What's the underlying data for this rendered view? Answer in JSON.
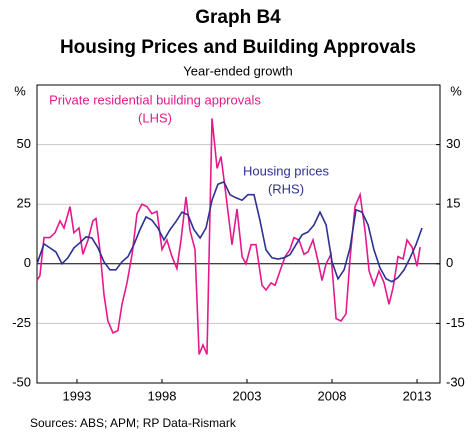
{
  "chart_data": {
    "type": "line",
    "title": "Graph B4",
    "subtitle": "Housing Prices and Building Approvals",
    "description": "Year-ended growth",
    "y_unit": "%",
    "y2_unit": "%",
    "source": "Sources: ABS; APM; RP Data-Rismark",
    "xlim": [
      1990.65,
      2014.35
    ],
    "xticks": [
      1993,
      1998,
      2003,
      2008,
      2013
    ],
    "ylim": [
      -50,
      75
    ],
    "yticks": [
      -50,
      -25,
      0,
      25,
      50
    ],
    "y2lim": [
      -30,
      45
    ],
    "y2ticks": [
      -30,
      -15,
      0,
      15,
      30
    ],
    "grid": true,
    "annotations": [
      {
        "text": "Private residential building approvals",
        "series": 0
      },
      {
        "text": "(LHS)",
        "series": 0
      },
      {
        "text": "Housing prices",
        "series": 1
      },
      {
        "text": "(RHS)",
        "series": 1
      }
    ],
    "series": [
      {
        "name": "Private residential building approvals",
        "color": "#e6198c",
        "axis": "y",
        "x": [
          1990.65,
          1990.82,
          1991.06,
          1991.41,
          1991.71,
          1992.0,
          1992.24,
          1992.59,
          1992.82,
          1993.12,
          1993.35,
          1993.65,
          1993.94,
          1994.12,
          1994.35,
          1994.59,
          1994.82,
          1995.12,
          1995.41,
          1995.65,
          1995.94,
          1996.24,
          1996.53,
          1996.82,
          1997.12,
          1997.41,
          1997.71,
          1998.0,
          1998.29,
          1998.59,
          1998.88,
          1999.12,
          1999.41,
          1999.65,
          1999.94,
          2000.18,
          2000.41,
          2000.65,
          2000.94,
          2001.24,
          2001.47,
          2001.76,
          2002.12,
          2002.41,
          2002.71,
          2002.94,
          2003.24,
          2003.53,
          2003.88,
          2004.12,
          2004.41,
          2004.65,
          2004.94,
          2005.24,
          2005.53,
          2005.76,
          2006.06,
          2006.35,
          2006.59,
          2006.88,
          2007.18,
          2007.41,
          2007.65,
          2007.94,
          2008.24,
          2008.53,
          2008.82,
          2009.06,
          2009.35,
          2009.65,
          2009.94,
          2010.18,
          2010.47,
          2010.76,
          2011.06,
          2011.35,
          2011.59,
          2011.88,
          2012.18,
          2012.41,
          2012.71,
          2013.0,
          2013.18
        ],
        "values": [
          -7,
          -5,
          11,
          11,
          13,
          18,
          15,
          24,
          13,
          15,
          4,
          10,
          18,
          19,
          6,
          -13,
          -24,
          -29,
          -28,
          -17,
          -8,
          4,
          21,
          25,
          24,
          21,
          22,
          6,
          10,
          3,
          -2,
          10,
          28,
          14,
          6,
          -38,
          -34,
          -38,
          61,
          40,
          45,
          29,
          8,
          23,
          3,
          0,
          8,
          8,
          -9,
          -11,
          -8,
          -9,
          -3,
          3,
          6,
          11,
          10,
          4,
          5,
          10,
          1,
          -7,
          0,
          4,
          -23,
          -24,
          -21,
          2,
          24,
          29,
          14,
          -3,
          -9,
          -3,
          -8,
          -17,
          -10,
          3,
          2,
          10,
          7,
          -1,
          7
        ]
      },
      {
        "name": "Housing prices",
        "color": "#2e3192",
        "axis": "y2",
        "x": [
          1990.65,
          1991.06,
          1991.41,
          1991.76,
          1992.12,
          1992.47,
          1992.82,
          1993.18,
          1993.53,
          1993.88,
          1994.24,
          1994.59,
          1994.94,
          1995.29,
          1995.65,
          1996.0,
          1996.35,
          1996.71,
          1997.06,
          1997.41,
          1997.76,
          1998.12,
          1998.47,
          1998.82,
          1999.18,
          1999.53,
          1999.88,
          2000.24,
          2000.59,
          2000.94,
          2001.29,
          2001.65,
          2002.0,
          2002.35,
          2002.71,
          2003.06,
          2003.41,
          2003.76,
          2004.12,
          2004.47,
          2004.82,
          2005.18,
          2005.53,
          2005.88,
          2006.24,
          2006.59,
          2006.94,
          2007.29,
          2007.65,
          2008.0,
          2008.35,
          2008.71,
          2009.06,
          2009.41,
          2009.76,
          2010.12,
          2010.47,
          2010.82,
          2011.18,
          2011.53,
          2011.88,
          2012.24,
          2012.59,
          2012.94,
          2013.29
        ],
        "values": [
          0,
          5,
          4,
          3,
          0,
          1.5,
          4,
          5.3,
          6.8,
          6.5,
          4,
          0.5,
          -1.5,
          -1.5,
          0.5,
          1.8,
          4.8,
          8.6,
          11.8,
          11,
          9,
          6,
          8.6,
          10.6,
          13,
          12.3,
          8.6,
          6.5,
          9,
          16,
          20,
          20.6,
          17.4,
          16.6,
          16,
          17.4,
          17.4,
          11,
          3.5,
          1.5,
          1.2,
          1.5,
          2.3,
          4.8,
          7.3,
          8,
          9.8,
          13,
          9.8,
          0.5,
          -3.8,
          -1.5,
          4,
          13.6,
          13,
          9.8,
          3.5,
          -1,
          -3.8,
          -4.5,
          -3.5,
          -1.5,
          1.5,
          4.8,
          9
        ]
      }
    ]
  }
}
